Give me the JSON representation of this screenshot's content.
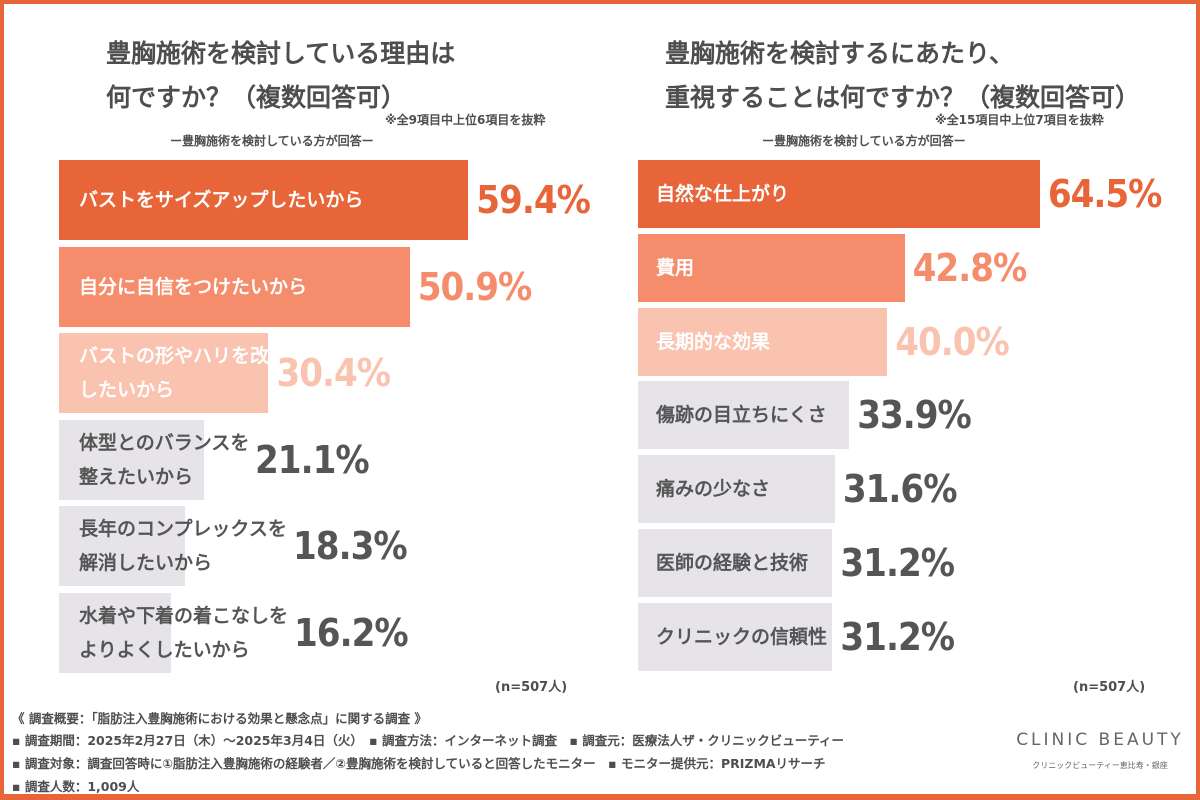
{
  "chart_data": [
    {
      "type": "bar",
      "orientation": "horizontal",
      "title": "豊胸施術を検討している理由は\n何ですか？（複数回答可）",
      "note": "※全9項目中上位6項目を抜粋",
      "subtitle": "ー豊胸施術を検討している方が回答ー",
      "sample": "(n=507人)",
      "categories": [
        "バストをサイズアップしたいから",
        "自分に自信をつけたいから",
        "バストの形やハリを改善\nしたいから",
        "体型とのバランスを\n整えたいから",
        "長年のコンプレックスを\n解消したいから",
        "水着や下着の着こなしを\nよりよくしたいから"
      ],
      "values": [
        59.4,
        50.9,
        30.4,
        21.1,
        18.3,
        16.2
      ],
      "unit": "%",
      "bar_colors": [
        "#e8653a",
        "#f58d6c",
        "#f9c3b0",
        "#e6e4e8",
        "#e6e4e8",
        "#e6e4e8"
      ],
      "value_colors": [
        "#e8653a",
        "#f58d6c",
        "#f9c3b0",
        "#555555",
        "#555555",
        "#555555"
      ]
    },
    {
      "type": "bar",
      "orientation": "horizontal",
      "title": "豊胸施術を検討するにあたり、\n重視することは何ですか？（複数回答可）",
      "note": "※全15項目中上位7項目を抜粋",
      "subtitle": "ー豊胸施術を検討している方が回答ー",
      "sample": "(n=507人)",
      "categories": [
        "自然な仕上がり",
        "費用",
        "長期的な効果",
        "傷跡の目立ちにくさ",
        "痛みの少なさ",
        "医師の経験と技術",
        "クリニックの信頼性"
      ],
      "values": [
        64.5,
        42.8,
        40.0,
        33.9,
        31.6,
        31.2,
        31.2
      ],
      "unit": "%",
      "bar_colors": [
        "#e8653a",
        "#f58d6c",
        "#f9c3b0",
        "#e6e4e8",
        "#e6e4e8",
        "#e6e4e8",
        "#e6e4e8"
      ],
      "value_colors": [
        "#e8653a",
        "#f58d6c",
        "#f9c3b0",
        "#555555",
        "#555555",
        "#555555",
        "#555555"
      ]
    }
  ],
  "footer": {
    "lines": [
      "《 調査概要：「脂肪注入豊胸施術における効果と懸念点」に関する調査 》",
      "▪ 調査期間：2025年2月27日（木）〜2025年3月4日（火）　▪ 調査方法：インターネット調査　▪ 調査元：医療法人ザ・クリニックビューティー",
      "▪ 調査対象：調査回答時に①脂肪注入豊胸施術の経験者／②豊胸施術を検討していると回答したモニター　▪ モニター提供元：PRIZMAリサーチ",
      "▪ 調査人数：1,009人"
    ]
  },
  "logo": {
    "name": "CLINIC BEAUTY",
    "sub": "クリニックビューティー恵比寿・銀座"
  }
}
